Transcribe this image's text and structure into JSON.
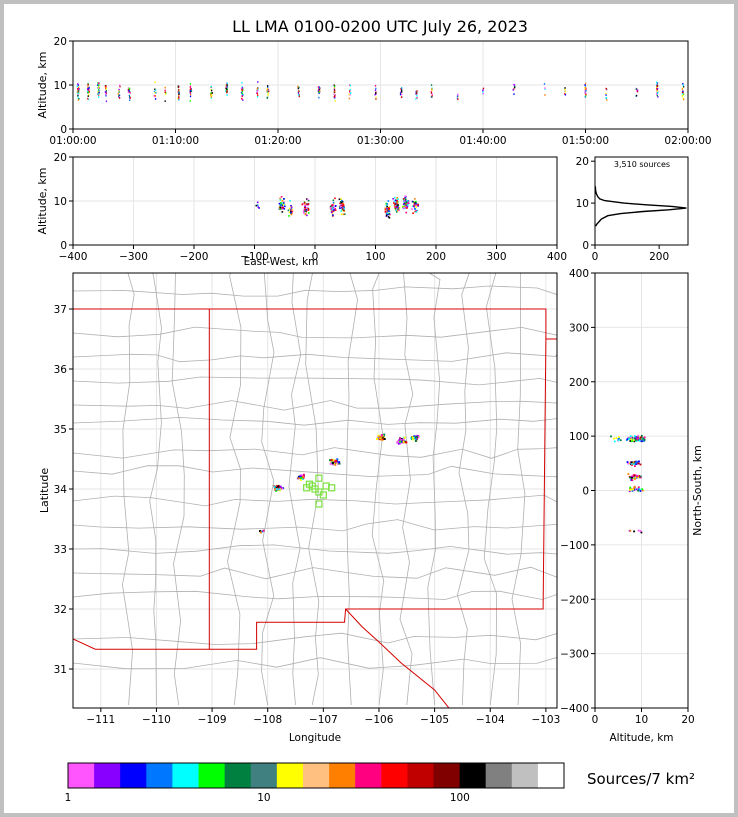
{
  "title": "LL LMA 0100-0200 UTC July 26, 2023",
  "source_count_label": "3,510 sources",
  "colorbar_label": "Sources/7 km²",
  "colors": {
    "state_border": "#d40000",
    "county_border": "#b0b0b0",
    "station_marker": "#7ce040",
    "axes": "#000000"
  },
  "chart_data": [
    {
      "name": "altitude-time",
      "type": "scatter",
      "ylabel": "Altitude, km",
      "x_ticks": [
        "01:00:00",
        "01:10:00",
        "01:20:00",
        "01:30:00",
        "01:40:00",
        "01:50:00",
        "02:00:00"
      ],
      "xlim_minutes": [
        0,
        60
      ],
      "y_ticks": [
        "0",
        "10",
        "20"
      ],
      "ylim": [
        0,
        20
      ],
      "grid": true,
      "clusters": [
        {
          "t": 0.5,
          "alt": 8.5,
          "n": 28
        },
        {
          "t": 1.5,
          "alt": 8.5,
          "n": 26
        },
        {
          "t": 2.5,
          "alt": 8.8,
          "n": 26
        },
        {
          "t": 3.2,
          "alt": 8.2,
          "n": 18
        },
        {
          "t": 4.5,
          "alt": 8.5,
          "n": 10
        },
        {
          "t": 5.5,
          "alt": 8.5,
          "n": 14
        },
        {
          "t": 8.0,
          "alt": 8.5,
          "n": 10
        },
        {
          "t": 9.0,
          "alt": 8.3,
          "n": 6
        },
        {
          "t": 10.3,
          "alt": 8.5,
          "n": 24
        },
        {
          "t": 11.5,
          "alt": 8.5,
          "n": 16
        },
        {
          "t": 13.5,
          "alt": 8.5,
          "n": 16
        },
        {
          "t": 15.0,
          "alt": 9.0,
          "n": 22
        },
        {
          "t": 16.5,
          "alt": 8.5,
          "n": 20
        },
        {
          "t": 18.0,
          "alt": 8.5,
          "n": 12
        },
        {
          "t": 19.0,
          "alt": 8.5,
          "n": 14
        },
        {
          "t": 22.0,
          "alt": 9.0,
          "n": 10
        },
        {
          "t": 24.0,
          "alt": 9.0,
          "n": 28
        },
        {
          "t": 25.5,
          "alt": 8.5,
          "n": 20
        },
        {
          "t": 27.0,
          "alt": 8.5,
          "n": 10
        },
        {
          "t": 29.5,
          "alt": 8.5,
          "n": 10
        },
        {
          "t": 32.0,
          "alt": 8.0,
          "n": 12
        },
        {
          "t": 33.5,
          "alt": 8.0,
          "n": 10
        },
        {
          "t": 35.0,
          "alt": 8.0,
          "n": 12
        },
        {
          "t": 37.5,
          "alt": 7.0,
          "n": 6
        },
        {
          "t": 40.0,
          "alt": 8.5,
          "n": 6
        },
        {
          "t": 43.0,
          "alt": 9.0,
          "n": 8
        },
        {
          "t": 46.0,
          "alt": 8.5,
          "n": 4
        },
        {
          "t": 48.0,
          "alt": 8.5,
          "n": 6
        },
        {
          "t": 50.0,
          "alt": 9.0,
          "n": 16
        },
        {
          "t": 52.0,
          "alt": 8.0,
          "n": 8
        },
        {
          "t": 55.0,
          "alt": 8.5,
          "n": 8
        },
        {
          "t": 57.0,
          "alt": 9.0,
          "n": 24
        },
        {
          "t": 59.5,
          "alt": 8.5,
          "n": 16
        }
      ]
    },
    {
      "name": "altitude-eastwest",
      "type": "scatter",
      "xlabel": "East-West, km",
      "ylabel": "Altitude, km",
      "x_ticks": [
        "−400",
        "−300",
        "−200",
        "−100",
        "0",
        "100",
        "200",
        "300",
        "400"
      ],
      "xlim": [
        -400,
        400
      ],
      "y_ticks": [
        "0",
        "10",
        "20"
      ],
      "ylim": [
        0,
        20
      ],
      "grid": true,
      "clusters": [
        {
          "x": -95,
          "alt": 9.0,
          "n": 6
        },
        {
          "x": -55,
          "alt": 9.0,
          "n": 40
        },
        {
          "x": -40,
          "alt": 8.0,
          "n": 20
        },
        {
          "x": -15,
          "alt": 8.5,
          "n": 40
        },
        {
          "x": 30,
          "alt": 8.5,
          "n": 30
        },
        {
          "x": 45,
          "alt": 9.0,
          "n": 40
        },
        {
          "x": 120,
          "alt": 8.0,
          "n": 40
        },
        {
          "x": 135,
          "alt": 9.0,
          "n": 50
        },
        {
          "x": 150,
          "alt": 9.5,
          "n": 60
        },
        {
          "x": 165,
          "alt": 9.0,
          "n": 40
        }
      ]
    },
    {
      "name": "altitude-histogram",
      "type": "line",
      "x_ticks": [
        "0",
        "200"
      ],
      "xlim": [
        0,
        290
      ],
      "y_ticks": [
        "0",
        "10",
        "20"
      ],
      "ylim": [
        0,
        21
      ],
      "points": [
        [
          2,
          4.5
        ],
        [
          6,
          5
        ],
        [
          12,
          5.5
        ],
        [
          20,
          6.2
        ],
        [
          40,
          7
        ],
        [
          80,
          7.5
        ],
        [
          150,
          8
        ],
        [
          230,
          8.4
        ],
        [
          285,
          8.8
        ],
        [
          240,
          9.2
        ],
        [
          160,
          9.6
        ],
        [
          90,
          10
        ],
        [
          60,
          10.3
        ],
        [
          30,
          10.6
        ],
        [
          15,
          11
        ],
        [
          8,
          11.6
        ],
        [
          4,
          12.3
        ],
        [
          2,
          13
        ],
        [
          1,
          14
        ]
      ]
    },
    {
      "name": "plan-view-map",
      "type": "scatter",
      "xlabel": "Longitude",
      "ylabel": "Latitude",
      "x_ticks": [
        "−111",
        "−110",
        "−109",
        "−108",
        "−107",
        "−106",
        "−105",
        "−104",
        "−103"
      ],
      "xlim": [
        -111.5,
        -102.8
      ],
      "y_ticks": [
        "31",
        "32",
        "33",
        "34",
        "35",
        "36",
        "37"
      ],
      "ylim": [
        30.35,
        37.6
      ],
      "grid": true,
      "clusters": [
        {
          "lon": -107.8,
          "lat": 34.02,
          "n": 40
        },
        {
          "lon": -107.4,
          "lat": 34.2,
          "n": 26
        },
        {
          "lon": -106.8,
          "lat": 34.45,
          "n": 40
        },
        {
          "lon": -105.95,
          "lat": 34.85,
          "n": 40
        },
        {
          "lon": -105.6,
          "lat": 34.8,
          "n": 50
        },
        {
          "lon": -105.35,
          "lat": 34.85,
          "n": 30
        },
        {
          "lon": -108.1,
          "lat": 33.3,
          "n": 4
        }
      ],
      "stations": [
        [
          -107.08,
          34.18
        ],
        [
          -107.2,
          34.05
        ],
        [
          -106.95,
          34.05
        ],
        [
          -107.08,
          33.95
        ],
        [
          -106.85,
          34.02
        ],
        [
          -107.3,
          34.02
        ],
        [
          -107.08,
          33.75
        ],
        [
          -107.15,
          34.0
        ],
        [
          -107.0,
          33.9
        ],
        [
          -107.25,
          34.08
        ]
      ]
    },
    {
      "name": "northsouth-altitude",
      "type": "scatter",
      "xlabel": "Altitude, km",
      "ylabel": "North-South, km",
      "x_ticks": [
        "0",
        "10",
        "20"
      ],
      "xlim": [
        0,
        20
      ],
      "y_ticks": [
        "−400",
        "−300",
        "−200",
        "−100",
        "0",
        "100",
        "200",
        "300",
        "400"
      ],
      "ylim": [
        -400,
        400
      ],
      "grid": true,
      "clusters": [
        {
          "alt": 9.0,
          "ns": 95,
          "n": 70
        },
        {
          "alt": 8.5,
          "ns": 50,
          "n": 40
        },
        {
          "alt": 8.5,
          "ns": 25,
          "n": 40
        },
        {
          "alt": 8.5,
          "ns": 2,
          "n": 30
        },
        {
          "alt": 9.0,
          "ns": -75,
          "n": 6
        },
        {
          "alt": 4.5,
          "ns": 95,
          "n": 10
        }
      ]
    },
    {
      "name": "density-colorbar",
      "type": "heatmap",
      "ticks": [
        "1",
        "10",
        "100"
      ],
      "colors": [
        "#ff55ff",
        "#8800ff",
        "#0000ff",
        "#0077ff",
        "#00ffff",
        "#00ff00",
        "#008040",
        "#408080",
        "#ffff00",
        "#ffc080",
        "#ff8000",
        "#ff0080",
        "#ff0000",
        "#c00000",
        "#800000",
        "#000000",
        "#808080",
        "#c0c0c0",
        "#ffffff"
      ]
    }
  ]
}
